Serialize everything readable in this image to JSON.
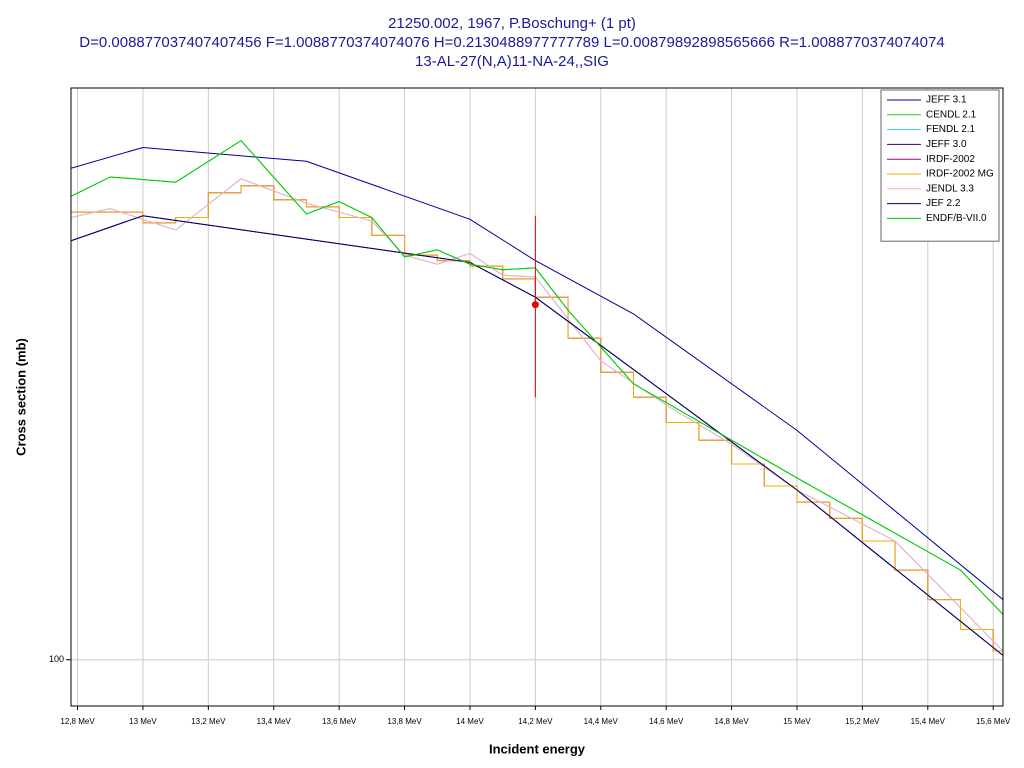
{
  "chart_data": {
    "type": "line",
    "title": "21250.002, 1967, P.Boschung+ (1 pt)",
    "subtitle": "D=0.008877037407407456 F=1.0088770374074076 H=0.2130488977777789 L=0.00879892898565666 R=1.0088770374074074",
    "subtitle2": "13-AL-27(N,A)11-NA-24,,SIG",
    "xlabel": "Incident energy",
    "ylabel": "Cross section (mb)",
    "xlim": [
      12.78,
      15.63
    ],
    "ylim": [
      97.9,
      130
    ],
    "log_y": true,
    "grid": true,
    "legend": "upper right",
    "xticks": [
      {
        "value": 12.8,
        "label": "12,8 MeV"
      },
      {
        "value": 13,
        "label": "13 MeV"
      },
      {
        "value": 13.2,
        "label": "13,2 MeV"
      },
      {
        "value": 13.4,
        "label": "13,4 MeV"
      },
      {
        "value": 13.6,
        "label": "13,6 MeV"
      },
      {
        "value": 13.8,
        "label": "13,8 MeV"
      },
      {
        "value": 14,
        "label": "14 MeV"
      },
      {
        "value": 14.2,
        "label": "14,2 MeV"
      },
      {
        "value": 14.4,
        "label": "14,4 MeV"
      },
      {
        "value": 14.6,
        "label": "14,6 MeV"
      },
      {
        "value": 14.8,
        "label": "14,8 MeV"
      },
      {
        "value": 15,
        "label": "15 MeV"
      },
      {
        "value": 15.2,
        "label": "15,2 MeV"
      },
      {
        "value": 15.4,
        "label": "15,4 MeV"
      },
      {
        "value": 15.6,
        "label": "15,6 MeV"
      }
    ],
    "yticks": [
      100
    ],
    "series": [
      {
        "name": "JEFF 3.1",
        "color": "#000099",
        "x": [
          12.78,
          13,
          13.5,
          14,
          14.2,
          14.5,
          15,
          15.63
        ],
        "values": [
          125.3,
          126.5,
          125.7,
          122.4,
          120.1,
          117.2,
          111.1,
          102.8
        ]
      },
      {
        "name": "CENDL 2.1",
        "color": "#22cc22",
        "x": [
          12.78,
          12.9,
          13.1,
          13.3,
          13.5,
          13.6,
          13.7,
          13.8,
          13.9,
          14,
          14.1,
          14.2,
          14.3,
          14.5,
          14.8,
          15,
          15.5,
          15.63
        ],
        "values": [
          123.7,
          124.8,
          124.5,
          126.9,
          122.7,
          123.4,
          122.5,
          120.3,
          120.7,
          119.9,
          119.6,
          119.7,
          117.4,
          113.5,
          110.6,
          108.7,
          104.2,
          102.1
        ]
      },
      {
        "name": "FENDL 2.1",
        "color": "#22dddd",
        "x": [
          12.78,
          12.9,
          13.1,
          13.3,
          13.5,
          13.7,
          13.8,
          13.9,
          14,
          14.1,
          14.2,
          14.4,
          14.6,
          14.8,
          15,
          15.3,
          15.63
        ],
        "values": [
          122.5,
          123.0,
          121.8,
          124.7,
          123.3,
          122.3,
          120.4,
          119.9,
          120.5,
          119.3,
          119.2,
          114.7,
          112.4,
          110.4,
          108.1,
          105.6,
          100.4
        ]
      },
      {
        "name": "JEFF 3.0",
        "color": "#330066",
        "x": [
          12.78,
          13,
          14,
          14.2,
          15,
          15.63
        ],
        "values": [
          121.2,
          122.6,
          120.0,
          118.1,
          108.1,
          100.2
        ]
      },
      {
        "name": "IRDF-2002",
        "color": "#990099",
        "bins": [
          12.78,
          12.9,
          13.0,
          13.1,
          13.2,
          13.3,
          13.4,
          13.5,
          13.6,
          13.7,
          13.8,
          13.9,
          14.0,
          14.1,
          14.2,
          14.3,
          14.4,
          14.5,
          14.6,
          14.7,
          14.8,
          14.9,
          15.0,
          15.1,
          15.2,
          15.3,
          15.4,
          15.5,
          15.6,
          15.63
        ],
        "values": [
          122.8,
          122.8,
          122.2,
          122.5,
          123.9,
          124.3,
          123.5,
          123.1,
          122.5,
          121.5,
          120.4,
          120.1,
          119.8,
          119.1,
          118.1,
          115.9,
          114.1,
          112.8,
          111.5,
          110.6,
          109.4,
          108.3,
          107.5,
          106.7,
          105.6,
          104.2,
          102.8,
          101.4,
          100.4
        ]
      },
      {
        "name": "IRDF-2002 MG",
        "color": "#f0b000",
        "bins": [
          12.78,
          12.9,
          13.0,
          13.1,
          13.2,
          13.3,
          13.4,
          13.5,
          13.6,
          13.7,
          13.8,
          13.9,
          14.0,
          14.1,
          14.2,
          14.3,
          14.4,
          14.5,
          14.6,
          14.7,
          14.8,
          14.9,
          15.0,
          15.1,
          15.2,
          15.3,
          15.4,
          15.5,
          15.6,
          15.63
        ],
        "values": [
          122.8,
          122.8,
          122.2,
          122.5,
          123.9,
          124.3,
          123.5,
          123.1,
          122.5,
          121.5,
          120.4,
          120.1,
          119.8,
          119.1,
          118.1,
          115.9,
          114.1,
          112.8,
          111.5,
          110.6,
          109.4,
          108.3,
          107.5,
          106.7,
          105.6,
          104.2,
          102.8,
          101.4,
          100.4
        ]
      },
      {
        "name": "JENDL 3.3",
        "color": "#ffaacc",
        "x": [
          12.78,
          12.9,
          13.1,
          13.3,
          13.5,
          13.7,
          13.8,
          13.9,
          14,
          14.1,
          14.2,
          14.4,
          14.6,
          14.8,
          15,
          15.3,
          15.63
        ],
        "values": [
          122.5,
          123.0,
          121.8,
          124.7,
          123.3,
          122.3,
          120.4,
          119.9,
          120.5,
          119.3,
          119.2,
          114.7,
          112.4,
          110.4,
          108.1,
          105.6,
          100.4
        ]
      },
      {
        "name": "JEF 2.2",
        "color": "#000066",
        "x": [
          12.78,
          13,
          14,
          14.2,
          15,
          15.63
        ],
        "values": [
          121.2,
          122.6,
          120.0,
          118.1,
          108.1,
          100.2
        ]
      },
      {
        "name": "ENDF/B-VII.0",
        "color": "#00cc00",
        "x": [
          12.78,
          12.9,
          13.1,
          13.3,
          13.5,
          13.6,
          13.7,
          13.8,
          13.9,
          14,
          14.1,
          14.2,
          14.3,
          14.5,
          14.8,
          15,
          15.5,
          15.63
        ],
        "values": [
          123.7,
          124.8,
          124.5,
          126.9,
          122.7,
          123.4,
          122.5,
          120.3,
          120.7,
          119.9,
          119.6,
          119.7,
          117.4,
          113.5,
          110.6,
          108.7,
          104.2,
          102.1
        ]
      }
    ],
    "points": {
      "color": "#ee0000",
      "x": [
        14.2
      ],
      "values": [
        117.7
      ],
      "errors": [
        4.9
      ]
    }
  }
}
